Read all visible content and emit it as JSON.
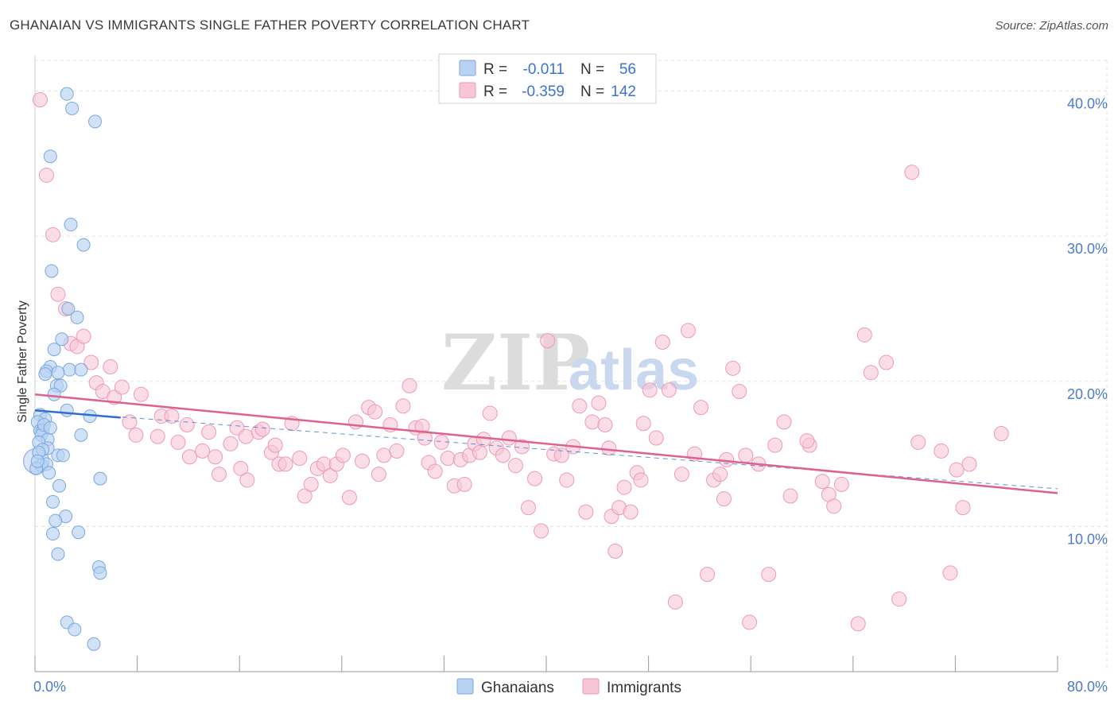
{
  "title": "GHANAIAN VS IMMIGRANTS SINGLE FATHER POVERTY CORRELATION CHART",
  "source": "Source: ZipAtlas.com",
  "watermark": {
    "zip": "ZIP",
    "atlas": "atlas"
  },
  "colors": {
    "ghanaians_fill": "#b9d2f2",
    "ghanaians_stroke": "#7aa7e0",
    "ghanaians_line": "#2f6fd0",
    "immigrants_fill": "#f6c6d6",
    "immigrants_stroke": "#ee9ab6",
    "immigrants_line": "#e0608e",
    "grid": "#e3e3e3",
    "axis_label": "#4a7bd0"
  },
  "legend": {
    "rows": [
      {
        "r_label": "R =",
        "r_value": "-0.011",
        "n_label": "N =",
        "n_value": "56"
      },
      {
        "r_label": "R =",
        "r_value": "-0.359",
        "n_label": "N =",
        "n_value": "142"
      }
    ]
  },
  "chart_data": {
    "type": "scatter",
    "title": "GHANAIAN VS IMMIGRANTS SINGLE FATHER POVERTY CORRELATION CHART",
    "xlabel": "",
    "ylabel": "Single Father Poverty",
    "xlim": [
      0,
      80
    ],
    "ylim": [
      0,
      42
    ],
    "x_tick_labels": [
      "0.0%",
      "80.0%"
    ],
    "y_ticks": [
      10,
      20,
      30,
      40
    ],
    "y_tick_labels": [
      "10.0%",
      "20.0%",
      "30.0%",
      "40.0%"
    ],
    "grid": true,
    "legend_position": "top-center",
    "series": [
      {
        "name": "Ghanaians",
        "r": -0.011,
        "n": 56,
        "trend": {
          "x": [
            0,
            6.7
          ],
          "y": [
            18.0,
            17.5
          ]
        },
        "trend_extended": {
          "x": [
            0,
            80
          ],
          "y": [
            18.0,
            12.6
          ]
        },
        "points": [
          [
            2.5,
            39.8
          ],
          [
            2.9,
            38.8
          ],
          [
            4.7,
            37.9
          ],
          [
            1.2,
            35.5
          ],
          [
            2.8,
            30.8
          ],
          [
            3.8,
            29.4
          ],
          [
            1.3,
            27.6
          ],
          [
            2.6,
            25.0
          ],
          [
            3.3,
            24.4
          ],
          [
            2.1,
            22.9
          ],
          [
            1.5,
            22.2
          ],
          [
            1.2,
            21.0
          ],
          [
            0.9,
            20.7
          ],
          [
            2.7,
            20.8
          ],
          [
            0.8,
            20.5
          ],
          [
            1.8,
            20.6
          ],
          [
            3.6,
            20.8
          ],
          [
            1.7,
            19.7
          ],
          [
            2.0,
            19.7
          ],
          [
            1.5,
            19.1
          ],
          [
            0.4,
            17.7
          ],
          [
            2.5,
            18.0
          ],
          [
            0.8,
            17.4
          ],
          [
            4.3,
            17.6
          ],
          [
            0.2,
            17.2
          ],
          [
            0.4,
            16.6
          ],
          [
            0.6,
            16.6
          ],
          [
            0.5,
            16.3
          ],
          [
            1.0,
            16.0
          ],
          [
            0.3,
            15.8
          ],
          [
            3.6,
            16.3
          ],
          [
            1.0,
            15.4
          ],
          [
            0.6,
            15.3
          ],
          [
            0.3,
            15.1
          ],
          [
            1.8,
            14.9
          ],
          [
            0.5,
            14.2
          ],
          [
            2.2,
            14.9
          ],
          [
            0.9,
            14.3
          ],
          [
            0.1,
            14.0
          ],
          [
            1.1,
            13.7
          ],
          [
            1.9,
            12.8
          ],
          [
            5.1,
            13.3
          ],
          [
            1.4,
            11.7
          ],
          [
            2.4,
            10.7
          ],
          [
            1.6,
            10.4
          ],
          [
            3.4,
            9.6
          ],
          [
            1.4,
            9.5
          ],
          [
            1.8,
            8.1
          ],
          [
            5.0,
            7.2
          ],
          [
            5.1,
            6.8
          ],
          [
            2.5,
            3.4
          ],
          [
            3.1,
            2.9
          ],
          [
            4.6,
            1.9
          ],
          [
            0.7,
            17.0
          ],
          [
            1.2,
            16.8
          ],
          [
            0.2,
            14.5
          ]
        ]
      },
      {
        "name": "Immigrants",
        "r": -0.359,
        "n": 142,
        "trend": {
          "x": [
            0,
            80
          ],
          "y": [
            19.1,
            12.3
          ]
        },
        "points": [
          [
            0.4,
            39.4
          ],
          [
            0.9,
            34.2
          ],
          [
            1.4,
            30.1
          ],
          [
            1.8,
            26.0
          ],
          [
            2.4,
            25.0
          ],
          [
            2.8,
            22.6
          ],
          [
            3.3,
            22.4
          ],
          [
            3.8,
            23.1
          ],
          [
            4.4,
            21.3
          ],
          [
            5.9,
            21.0
          ],
          [
            4.8,
            19.9
          ],
          [
            5.3,
            19.3
          ],
          [
            6.2,
            18.9
          ],
          [
            6.8,
            19.6
          ],
          [
            8.3,
            19.1
          ],
          [
            7.4,
            17.2
          ],
          [
            7.9,
            16.3
          ],
          [
            9.6,
            16.2
          ],
          [
            9.9,
            17.6
          ],
          [
            10.7,
            17.6
          ],
          [
            11.2,
            15.8
          ],
          [
            12.1,
            14.8
          ],
          [
            11.9,
            17.0
          ],
          [
            13.1,
            15.2
          ],
          [
            13.6,
            16.5
          ],
          [
            14.1,
            14.8
          ],
          [
            14.4,
            13.6
          ],
          [
            15.3,
            15.7
          ],
          [
            15.8,
            16.8
          ],
          [
            16.5,
            16.2
          ],
          [
            16.1,
            14.0
          ],
          [
            16.6,
            13.2
          ],
          [
            17.5,
            16.5
          ],
          [
            17.8,
            16.7
          ],
          [
            18.5,
            15.1
          ],
          [
            18.8,
            15.6
          ],
          [
            19.1,
            14.3
          ],
          [
            19.6,
            14.3
          ],
          [
            20.1,
            17.1
          ],
          [
            20.7,
            14.7
          ],
          [
            21.1,
            12.1
          ],
          [
            21.6,
            12.9
          ],
          [
            22.1,
            14.0
          ],
          [
            22.6,
            14.3
          ],
          [
            23.1,
            13.5
          ],
          [
            23.6,
            14.3
          ],
          [
            24.1,
            14.9
          ],
          [
            24.6,
            12.0
          ],
          [
            25.1,
            17.2
          ],
          [
            25.6,
            14.5
          ],
          [
            26.1,
            18.2
          ],
          [
            26.6,
            17.9
          ],
          [
            27.3,
            14.9
          ],
          [
            27.8,
            17.0
          ],
          [
            28.3,
            15.2
          ],
          [
            28.8,
            18.3
          ],
          [
            29.3,
            19.7
          ],
          [
            29.8,
            16.8
          ],
          [
            30.3,
            16.9
          ],
          [
            30.8,
            14.4
          ],
          [
            31.3,
            13.8
          ],
          [
            31.8,
            15.8
          ],
          [
            32.3,
            14.7
          ],
          [
            32.8,
            12.8
          ],
          [
            33.3,
            14.6
          ],
          [
            34.0,
            14.9
          ],
          [
            34.4,
            15.7
          ],
          [
            34.8,
            15.1
          ],
          [
            35.1,
            16.0
          ],
          [
            35.6,
            17.8
          ],
          [
            36.1,
            15.4
          ],
          [
            36.6,
            14.9
          ],
          [
            37.1,
            16.1
          ],
          [
            37.6,
            14.2
          ],
          [
            38.1,
            15.5
          ],
          [
            38.6,
            11.3
          ],
          [
            39.1,
            13.3
          ],
          [
            39.6,
            9.7
          ],
          [
            40.1,
            22.8
          ],
          [
            40.6,
            15.0
          ],
          [
            41.2,
            14.9
          ],
          [
            41.6,
            13.2
          ],
          [
            42.1,
            15.5
          ],
          [
            42.6,
            18.3
          ],
          [
            43.1,
            11.0
          ],
          [
            43.6,
            17.2
          ],
          [
            44.1,
            18.5
          ],
          [
            44.6,
            17.0
          ],
          [
            45.1,
            10.7
          ],
          [
            45.4,
            8.3
          ],
          [
            45.7,
            11.3
          ],
          [
            46.1,
            12.7
          ],
          [
            46.6,
            11.0
          ],
          [
            47.1,
            13.7
          ],
          [
            47.6,
            17.1
          ],
          [
            48.1,
            19.4
          ],
          [
            48.6,
            16.1
          ],
          [
            49.1,
            22.7
          ],
          [
            49.6,
            19.4
          ],
          [
            50.1,
            4.8
          ],
          [
            50.6,
            13.6
          ],
          [
            51.1,
            23.5
          ],
          [
            51.6,
            15.0
          ],
          [
            52.1,
            18.2
          ],
          [
            52.6,
            6.7
          ],
          [
            53.1,
            13.2
          ],
          [
            53.6,
            13.6
          ],
          [
            54.1,
            14.6
          ],
          [
            54.6,
            20.9
          ],
          [
            55.1,
            19.3
          ],
          [
            55.6,
            14.9
          ],
          [
            55.9,
            3.4
          ],
          [
            56.6,
            14.3
          ],
          [
            57.4,
            6.7
          ],
          [
            57.9,
            15.6
          ],
          [
            58.6,
            17.2
          ],
          [
            59.1,
            12.1
          ],
          [
            60.6,
            15.6
          ],
          [
            61.6,
            13.1
          ],
          [
            62.1,
            12.2
          ],
          [
            62.5,
            11.4
          ],
          [
            63.1,
            12.9
          ],
          [
            64.4,
            3.3
          ],
          [
            64.9,
            23.2
          ],
          [
            65.4,
            20.6
          ],
          [
            66.6,
            21.3
          ],
          [
            67.6,
            5.0
          ],
          [
            68.6,
            34.4
          ],
          [
            69.1,
            15.8
          ],
          [
            70.9,
            15.2
          ],
          [
            71.6,
            6.8
          ],
          [
            72.1,
            13.9
          ],
          [
            72.6,
            11.3
          ],
          [
            73.1,
            14.3
          ],
          [
            75.6,
            16.4
          ],
          [
            60.4,
            15.9
          ],
          [
            26.9,
            13.6
          ],
          [
            33.6,
            12.9
          ],
          [
            44.9,
            15.4
          ],
          [
            30.5,
            16.1
          ],
          [
            47.4,
            13.2
          ],
          [
            53.9,
            11.9
          ]
        ]
      }
    ]
  },
  "bottom_legend": {
    "items": [
      {
        "label": "Ghanaians"
      },
      {
        "label": "Immigrants"
      }
    ]
  }
}
